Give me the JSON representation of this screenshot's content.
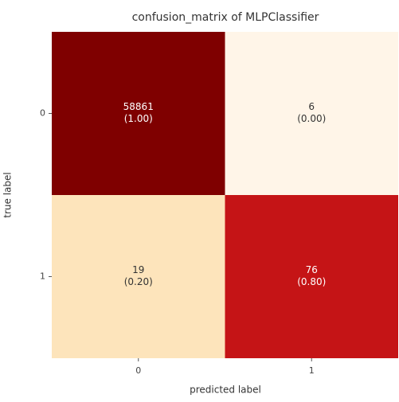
{
  "chart_data": {
    "type": "heatmap",
    "title": "confusion_matrix of MLPClassifier",
    "xlabel": "predicted label",
    "ylabel": "true label",
    "x_categories": [
      "0",
      "1"
    ],
    "y_categories": [
      "0",
      "1"
    ],
    "values": [
      [
        58861,
        6
      ],
      [
        19,
        76
      ]
    ],
    "normalized": [
      [
        1.0,
        0.0
      ],
      [
        0.2,
        0.8
      ]
    ],
    "normalized_labels": [
      [
        "(1.00)",
        "(0.00)"
      ],
      [
        "(0.20)",
        "(0.80)"
      ]
    ],
    "color_scale": [
      "#fff5e8",
      "#fde0b0",
      "#fc9a5a",
      "#d7191c",
      "#7f0000"
    ],
    "clim": [
      0,
      1
    ]
  }
}
